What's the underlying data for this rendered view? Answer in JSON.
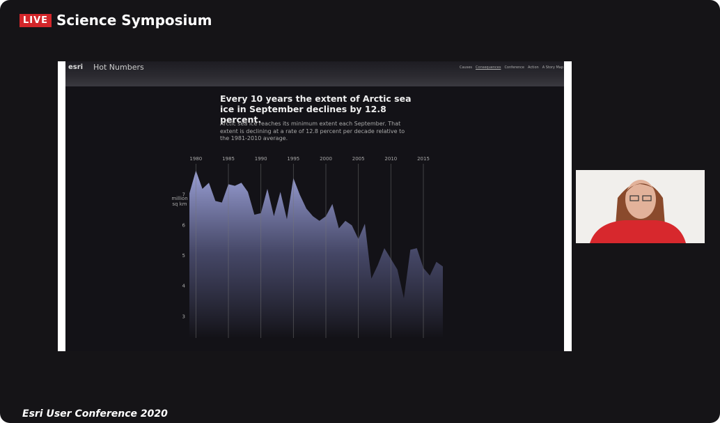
{
  "header": {
    "badge": "LIVE",
    "title": "Science Symposium"
  },
  "slide": {
    "brand": "esri",
    "app_title": "Hot Numbers",
    "nav": [
      "Causes",
      "Consequences",
      "Conference",
      "Action",
      "A Story Map"
    ]
  },
  "chart_data": {
    "type": "area",
    "title": "Every 10 years the extent of Arctic sea ice in September declines by 12.8 percent.",
    "subtitle": "Arctic sea ice reaches its minimum extent each September. That extent is declining at a rate of 12.8 percent per decade relative to the 1981-2010 average.",
    "y_label": "million sq km",
    "x": [
      1979,
      1980,
      1981,
      1982,
      1983,
      1984,
      1985,
      1986,
      1987,
      1988,
      1989,
      1990,
      1991,
      1992,
      1993,
      1994,
      1995,
      1996,
      1997,
      1998,
      1999,
      2000,
      2001,
      2002,
      2003,
      2004,
      2005,
      2006,
      2007,
      2008,
      2009,
      2010,
      2011,
      2012,
      2013,
      2014,
      2015,
      2016,
      2017,
      2018
    ],
    "values": [
      7.05,
      7.8,
      7.2,
      7.4,
      6.8,
      6.75,
      7.35,
      7.3,
      7.4,
      7.1,
      6.35,
      6.4,
      7.2,
      6.3,
      7.1,
      6.2,
      7.55,
      7.0,
      6.55,
      6.3,
      6.15,
      6.3,
      6.7,
      5.9,
      6.15,
      6.0,
      5.55,
      6.05,
      4.25,
      4.7,
      5.25,
      4.9,
      4.55,
      3.6,
      5.2,
      5.25,
      4.6,
      4.35,
      4.8,
      4.65
    ],
    "xlim": [
      1979,
      2018
    ],
    "ylim": [
      2.3,
      8
    ],
    "xticks": [
      1980,
      1985,
      1990,
      1995,
      2000,
      2005,
      2010,
      2015
    ],
    "yticks": [
      3,
      4,
      5,
      6,
      7
    ],
    "color": "#9aa0d6"
  },
  "footer": {
    "text": "Esri User Conference 2020"
  }
}
